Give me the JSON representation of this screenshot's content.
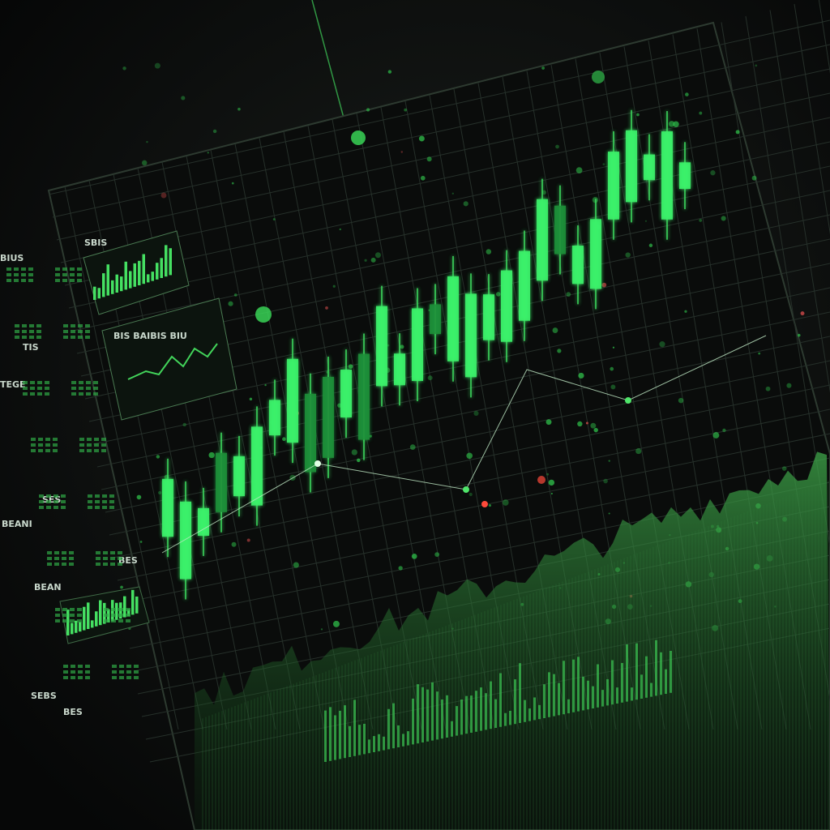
{
  "panels": [
    {
      "label": "SBIS"
    },
    {
      "label": "BIS BAIBIS BIU"
    }
  ],
  "side_labels": [
    "BIUS",
    "TIS",
    "TEGE",
    "SES",
    "BEANI",
    "BES",
    "BEAN",
    "SEBS",
    "BES"
  ]
}
